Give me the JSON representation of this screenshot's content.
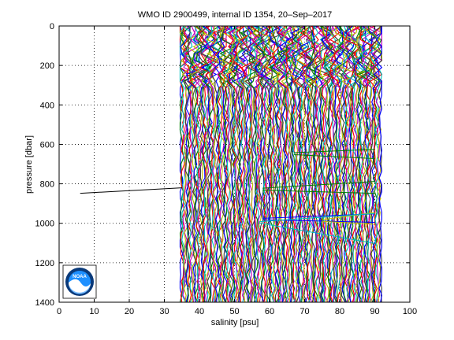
{
  "chart_data": {
    "type": "line",
    "title": "WMO ID 2900499, internal ID 1354, 20–Sep–2017",
    "xlabel": "salinity [psu]",
    "ylabel": "pressure [dbar]",
    "xlim": [
      0,
      100
    ],
    "ylim": [
      0,
      1400
    ],
    "y_reversed": true,
    "grid": true,
    "x_ticks": [
      0,
      10,
      20,
      30,
      40,
      50,
      60,
      70,
      80,
      90,
      100
    ],
    "y_ticks": [
      0,
      200,
      400,
      600,
      800,
      1000,
      1200,
      1400
    ],
    "profile_band": {
      "xmin": 34.5,
      "xmax": 92,
      "pmin": 0,
      "pmax": 1400
    },
    "profile_colors": [
      "#0000ff",
      "#008000",
      "#ff0000",
      "#00bfbf",
      "#bf00bf",
      "#bfbf00",
      "#404040"
    ],
    "outlier_segments": [
      {
        "color": "#000000",
        "points": [
          [
            6,
            848
          ],
          [
            35,
            820
          ]
        ]
      },
      {
        "color": "#008000",
        "points": [
          [
            67,
            642
          ],
          [
            90,
            625
          ]
        ]
      },
      {
        "color": "#008000",
        "points": [
          [
            67,
            652
          ],
          [
            90,
            672
          ]
        ]
      },
      {
        "color": "#008000",
        "points": [
          [
            58,
            822
          ],
          [
            90,
            788
          ]
        ]
      },
      {
        "color": "#008000",
        "points": [
          [
            58,
            832
          ],
          [
            90,
            848
          ]
        ]
      },
      {
        "color": "#0000ff",
        "points": [
          [
            58,
            975
          ],
          [
            90,
            952
          ]
        ]
      },
      {
        "color": "#0000ff",
        "points": [
          [
            58,
            982
          ],
          [
            90,
            995
          ]
        ]
      },
      {
        "color": "#bfbf00",
        "points": [
          [
            75,
            982
          ],
          [
            90,
            945
          ]
        ]
      },
      {
        "color": "#bfbf00",
        "points": [
          [
            75,
            990
          ],
          [
            90,
            1005
          ]
        ]
      },
      {
        "color": "#00bfbf",
        "points": [
          [
            57,
            992
          ],
          [
            90,
            950
          ]
        ]
      },
      {
        "color": "#00bfbf",
        "points": [
          [
            57,
            998
          ],
          [
            90,
            1102
          ]
        ]
      }
    ]
  },
  "logo": {
    "text": "NOAA",
    "colors": {
      "ring": "#0a3a7a",
      "sky": "#1e90ff",
      "water": "#ffffff"
    }
  }
}
